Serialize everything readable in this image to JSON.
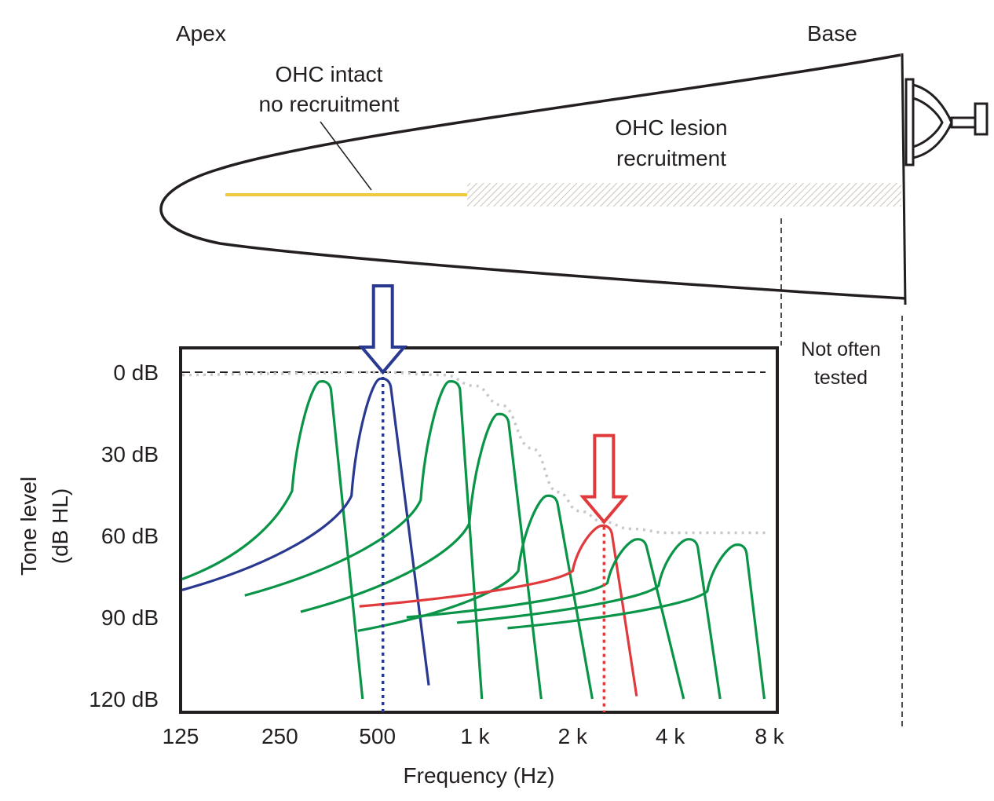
{
  "cochlea": {
    "apex_label": "Apex",
    "base_label": "Base",
    "intact_label_line1": "OHC intact",
    "intact_label_line2": "no recruitment",
    "lesion_label_line1": "OHC lesion",
    "lesion_label_line2": "recruitment",
    "not_tested_line1": "Not often",
    "not_tested_line2": "tested",
    "colors": {
      "intact": "#f0c93f",
      "lesion_hatch": "#bdb7a6",
      "outline": "#231f20"
    }
  },
  "chart_data": {
    "type": "line",
    "title": "",
    "xlabel": "Frequency (Hz)",
    "ylabel_line1": "Tone level",
    "ylabel_line2": "(dB HL)",
    "x_scale": "log2",
    "xlim": [
      125,
      8000
    ],
    "ylim": [
      0,
      120
    ],
    "y_inverted": true,
    "x_ticks": [
      {
        "value": 125,
        "label": "125"
      },
      {
        "value": 250,
        "label": "250"
      },
      {
        "value": 500,
        "label": "500"
      },
      {
        "value": 1000,
        "label": "1 k"
      },
      {
        "value": 2000,
        "label": "2 k"
      },
      {
        "value": 4000,
        "label": "4 k"
      },
      {
        "value": 8000,
        "label": "8 k"
      }
    ],
    "y_ticks": [
      {
        "value": 0,
        "label": "0 dB"
      },
      {
        "value": 30,
        "label": "30 dB"
      },
      {
        "value": 60,
        "label": "60 dB"
      },
      {
        "value": 90,
        "label": "90 dB"
      },
      {
        "value": 120,
        "label": "120 dB"
      }
    ],
    "reference_line_db": 0,
    "threshold_curve": {
      "name": "audiogram threshold (dotted)",
      "color": "#c8c8c8",
      "points": [
        [
          125,
          1
        ],
        [
          250,
          0.5
        ],
        [
          500,
          0
        ],
        [
          800,
          1
        ],
        [
          1000,
          5
        ],
        [
          1200,
          12
        ],
        [
          1500,
          28
        ],
        [
          1800,
          44
        ],
        [
          2100,
          51
        ],
        [
          2500,
          55
        ],
        [
          3000,
          57.5
        ],
        [
          4000,
          59
        ],
        [
          6000,
          59
        ],
        [
          8000,
          59
        ]
      ]
    },
    "tuning_curves": [
      {
        "name": "tuning-curve-350",
        "color": "#0a9447",
        "cf": 340,
        "tip_db": 4,
        "tail_start": [
          125,
          76
        ],
        "low_end": [
          450,
          120
        ]
      },
      {
        "name": "tuning-curve-520",
        "color": "#2a3990",
        "cf": 520,
        "tip_db": 3,
        "tail_start": [
          125,
          80
        ],
        "low_end": [
          720,
          115
        ],
        "highlighted": true
      },
      {
        "name": "tuning-curve-850",
        "color": "#0a9447",
        "cf": 850,
        "tip_db": 4,
        "tail_start": [
          195,
          82
        ],
        "low_end": [
          1050,
          120
        ]
      },
      {
        "name": "tuning-curve-1200",
        "color": "#0a9447",
        "cf": 1200,
        "tip_db": 16,
        "tail_start": [
          290,
          88
        ],
        "low_end": [
          1600,
          120
        ]
      },
      {
        "name": "tuning-curve-1700",
        "color": "#0a9447",
        "cf": 1700,
        "tip_db": 46,
        "tail_start": [
          435,
          95
        ],
        "low_end": [
          2300,
          120
        ]
      },
      {
        "name": "tuning-curve-2500",
        "color": "#e03a3c",
        "cf": 2500,
        "tip_db": 57,
        "tail_start": [
          440,
          86
        ],
        "low_end": [
          3150,
          119
        ],
        "highlighted": true
      },
      {
        "name": "tuning-curve-3200",
        "color": "#0a9447",
        "cf": 3200,
        "tip_db": 62,
        "tail_start": [
          615,
          90
        ],
        "low_end": [
          4400,
          120
        ]
      },
      {
        "name": "tuning-curve-4600",
        "color": "#0a9447",
        "cf": 4600,
        "tip_db": 62,
        "tail_start": [
          880,
          92
        ],
        "low_end": [
          5700,
          120
        ]
      },
      {
        "name": "tuning-curve-6500",
        "color": "#0a9447",
        "cf": 6500,
        "tip_db": 64,
        "tail_start": [
          1260,
          94
        ],
        "low_end": [
          7800,
          120
        ]
      }
    ],
    "markers": [
      {
        "name": "intact-arrow",
        "color": "#2a3990",
        "freq": 520,
        "db": 0
      },
      {
        "name": "lesion-arrow",
        "color": "#e03a3c",
        "freq": 2500,
        "db": 55
      }
    ]
  }
}
